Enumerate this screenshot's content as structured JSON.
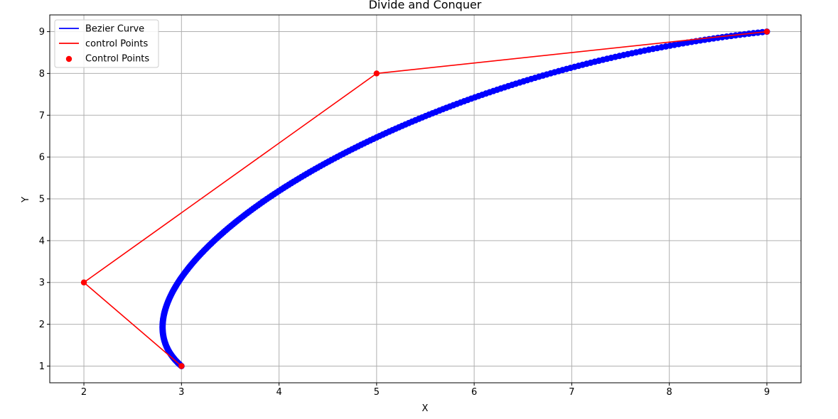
{
  "chart_data": {
    "type": "line",
    "title": "Divide and Conquer",
    "xlabel": "X",
    "ylabel": "Y",
    "xlim": [
      1.65,
      9.35
    ],
    "ylim": [
      0.6,
      9.4
    ],
    "xticks": [
      2,
      3,
      4,
      5,
      6,
      7,
      8,
      9
    ],
    "yticks": [
      1,
      2,
      3,
      4,
      5,
      6,
      7,
      8,
      9
    ],
    "grid": true,
    "legend_position": "top-left",
    "control_points": [
      [
        3,
        1
      ],
      [
        2,
        3
      ],
      [
        5,
        8
      ],
      [
        9,
        9
      ]
    ],
    "curve_sample_count": 260,
    "series": [
      {
        "name": "Bezier Curve",
        "kind": "line",
        "color": "#0000ff"
      },
      {
        "name": "control Points",
        "kind": "line",
        "color": "#ff0000"
      },
      {
        "name": "Control Points",
        "kind": "scatter",
        "color": "#ff0000"
      }
    ]
  }
}
